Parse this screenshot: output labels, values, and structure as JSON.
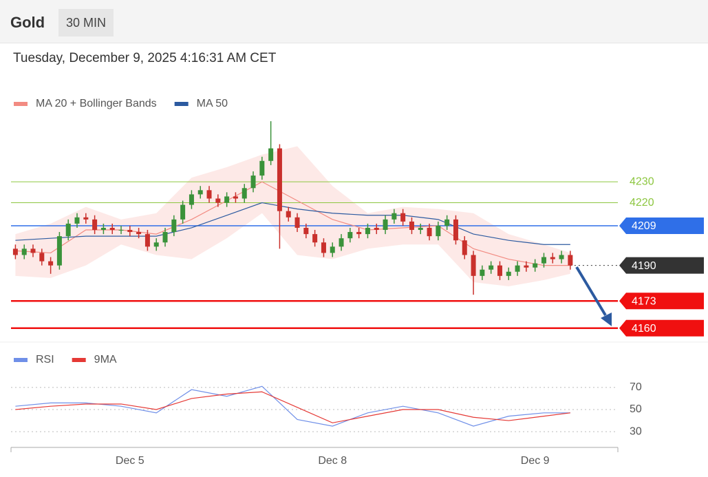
{
  "header": {
    "symbol": "Gold",
    "interval": "30 MIN",
    "timestamp": "Tuesday, December 9, 2025 4:16:31 AM CET"
  },
  "chart_data": [
    {
      "type": "candlestick",
      "x": [
        0,
        1,
        2,
        3,
        4,
        5,
        6,
        7,
        8,
        9,
        10,
        11,
        12,
        13,
        14,
        15,
        16,
        17,
        18,
        19,
        20,
        21,
        22,
        23,
        24,
        25,
        26,
        27,
        28,
        29,
        30,
        31,
        32,
        33,
        34,
        35,
        36,
        37,
        38,
        39,
        40,
        41,
        42,
        43,
        44,
        45,
        46,
        47,
        48,
        49,
        50,
        51,
        52,
        53,
        54,
        55,
        56,
        57,
        58,
        59,
        60,
        61,
        62,
        63
      ],
      "open": [
        4198,
        4195,
        4198,
        4196,
        4192,
        4190,
        4204,
        4210,
        4213,
        4212,
        4207,
        4208,
        4207,
        4207,
        4206,
        4205,
        4199,
        4201,
        4206,
        4212,
        4219,
        4224,
        4226,
        4222,
        4220,
        4223,
        4222,
        4227,
        4233,
        4240,
        4246,
        4216,
        4213,
        4208,
        4205,
        4201,
        4196,
        4199,
        4203,
        4206,
        4205,
        4208,
        4207,
        4212,
        4215,
        4211,
        4207,
        4208,
        4204,
        4209,
        4212,
        4202,
        4195,
        4185,
        4188,
        4190,
        4185,
        4187,
        4190,
        4189,
        4191,
        4194,
        4193,
        4195
      ],
      "high": [
        4200,
        4200,
        4200,
        4198,
        4194,
        4206,
        4212,
        4215,
        4215,
        4214,
        4210,
        4210,
        4209,
        4209,
        4208,
        4207,
        4203,
        4208,
        4214,
        4221,
        4226,
        4228,
        4228,
        4224,
        4225,
        4225,
        4229,
        4235,
        4242,
        4259,
        4248,
        4218,
        4215,
        4210,
        4207,
        4203,
        4201,
        4205,
        4208,
        4208,
        4210,
        4210,
        4214,
        4217,
        4217,
        4213,
        4210,
        4210,
        4211,
        4214,
        4214,
        4204,
        4197,
        4190,
        4192,
        4192,
        4189,
        4192,
        4192,
        4193,
        4196,
        4196,
        4197,
        4197
      ],
      "low": [
        4193,
        4193,
        4194,
        4190,
        4186,
        4188,
        4202,
        4208,
        4210,
        4205,
        4205,
        4205,
        4205,
        4204,
        4203,
        4197,
        4197,
        4199,
        4204,
        4210,
        4217,
        4222,
        4220,
        4218,
        4218,
        4220,
        4220,
        4225,
        4231,
        4238,
        4198,
        4211,
        4206,
        4203,
        4199,
        4194,
        4194,
        4197,
        4201,
        4203,
        4203,
        4205,
        4205,
        4210,
        4209,
        4205,
        4205,
        4202,
        4202,
        4207,
        4200,
        4193,
        4176,
        4183,
        4186,
        4183,
        4183,
        4185,
        4187,
        4187,
        4189,
        4191,
        4191,
        4188
      ],
      "close": [
        4195,
        4198,
        4196,
        4192,
        4190,
        4204,
        4210,
        4213,
        4212,
        4207,
        4208,
        4207,
        4207,
        4206,
        4205,
        4199,
        4201,
        4206,
        4212,
        4219,
        4224,
        4226,
        4222,
        4220,
        4223,
        4222,
        4227,
        4233,
        4240,
        4246,
        4216,
        4213,
        4208,
        4205,
        4201,
        4196,
        4199,
        4203,
        4206,
        4205,
        4208,
        4207,
        4212,
        4215,
        4211,
        4207,
        4208,
        4204,
        4209,
        4212,
        4202,
        4195,
        4185,
        4188,
        4190,
        4185,
        4187,
        4190,
        4189,
        4191,
        4194,
        4193,
        4195,
        4190
      ],
      "up_color": "#3a923a",
      "down_color": "#c9302c",
      "xlim": [
        -0.5,
        68.4
      ],
      "ylim": [
        4154,
        4261
      ],
      "series": [
        {
          "name": "MA 20 + Bollinger Bands",
          "color": "#f28b82",
          "band_color": "#fde3e1",
          "x": [
            0,
            4,
            8,
            12,
            16,
            20,
            24,
            28,
            32,
            36,
            40,
            44,
            48,
            52,
            56,
            60,
            63
          ],
          "values": [
            4197,
            4196,
            4207,
            4207,
            4205,
            4212,
            4221,
            4230,
            4221,
            4212,
            4207,
            4208,
            4209,
            4198,
            4193,
            4190,
            4190
          ],
          "upper": [
            4205,
            4210,
            4218,
            4212,
            4215,
            4232,
            4237,
            4243,
            4247,
            4228,
            4215,
            4218,
            4217,
            4215,
            4205,
            4200,
            4196
          ],
          "lower": [
            4185,
            4184,
            4190,
            4200,
            4195,
            4193,
            4203,
            4215,
            4195,
            4193,
            4198,
            4200,
            4200,
            4182,
            4180,
            4183,
            4186
          ]
        },
        {
          "name": "MA 50",
          "color": "#2c5aa0",
          "x": [
            0,
            4,
            8,
            12,
            16,
            20,
            24,
            28,
            32,
            36,
            40,
            44,
            48,
            52,
            56,
            60,
            63
          ],
          "values": [
            4202,
            4203,
            4204,
            4204,
            4204,
            4208,
            4214,
            4220,
            4217,
            4215,
            4214,
            4214,
            4212,
            4205,
            4202,
            4200,
            4200
          ]
        }
      ],
      "levels": [
        {
          "value": 4230,
          "color": "#8cc63f",
          "tag": false,
          "width": 1,
          "dash": false
        },
        {
          "value": 4220,
          "color": "#8cc63f",
          "tag": false,
          "width": 1,
          "dash": false
        },
        {
          "value": 4209,
          "color": "#2f6fe8",
          "tag": true,
          "width": 1.5,
          "dash": false
        },
        {
          "value": 4190,
          "color": "#333333",
          "tag": true,
          "width": 1,
          "dash": true
        },
        {
          "value": 4173,
          "color": "#f01010",
          "tag": true,
          "width": 2.5,
          "dash": false
        },
        {
          "value": 4160,
          "color": "#f01010",
          "tag": true,
          "width": 2.5,
          "dash": false
        }
      ]
    },
    {
      "type": "line",
      "xlim": [
        -0.5,
        68.4
      ],
      "ylim": [
        22,
        78
      ],
      "yticks": [
        30,
        50,
        70
      ],
      "xticks": [
        {
          "value": 13,
          "label": "Dec 5"
        },
        {
          "value": 36,
          "label": "Dec 8"
        },
        {
          "value": 59,
          "label": "Dec 9"
        }
      ],
      "series": [
        {
          "name": "RSI",
          "color": "#6f8fe8",
          "x": [
            0,
            4,
            8,
            12,
            16,
            20,
            24,
            28,
            32,
            36,
            40,
            44,
            48,
            52,
            56,
            60,
            63
          ],
          "values": [
            53,
            56,
            56,
            53,
            47,
            68,
            62,
            71,
            41,
            35,
            47,
            53,
            47,
            35,
            44,
            47,
            47
          ]
        },
        {
          "name": "9MA",
          "color": "#e53935",
          "x": [
            0,
            4,
            8,
            12,
            16,
            20,
            24,
            28,
            32,
            36,
            40,
            44,
            48,
            52,
            56,
            60,
            63
          ],
          "values": [
            50,
            53,
            55,
            55,
            50,
            60,
            64,
            66,
            52,
            38,
            44,
            50,
            50,
            43,
            40,
            44,
            47
          ]
        }
      ]
    }
  ]
}
